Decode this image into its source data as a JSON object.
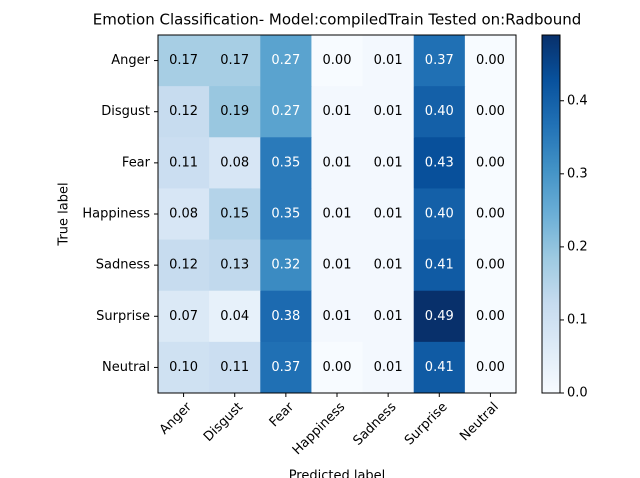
{
  "chart_data": {
    "type": "heatmap",
    "title": "Emotion Classification- Model:compiledTrain Tested on:Radbound",
    "xlabel": "Predicted label",
    "ylabel": "True label",
    "x_categories": [
      "Anger",
      "Disgust",
      "Fear",
      "Happiness",
      "Sadness",
      "Surprise",
      "Neutral"
    ],
    "y_categories": [
      "Anger",
      "Disgust",
      "Fear",
      "Happiness",
      "Sadness",
      "Surprise",
      "Neutral"
    ],
    "values": [
      [
        0.17,
        0.17,
        0.27,
        0,
        0.01,
        0.37,
        0
      ],
      [
        0.12,
        0.19,
        0.27,
        0.01,
        0.01,
        0.4,
        0
      ],
      [
        0.11,
        0.08,
        0.35,
        0.01,
        0.01,
        0.43,
        0
      ],
      [
        0.08,
        0.15,
        0.35,
        0.01,
        0.01,
        0.4,
        0
      ],
      [
        0.12,
        0.13,
        0.32,
        0.01,
        0.01,
        0.41,
        0
      ],
      [
        0.07,
        0.04,
        0.38,
        0.01,
        0.01,
        0.49,
        0
      ],
      [
        0.1,
        0.11,
        0.37,
        0,
        0.01,
        0.41,
        0
      ]
    ],
    "value_labels": [
      [
        "0.17",
        "0.17",
        "0.27",
        "0.00",
        "0.01",
        "0.37",
        "0.00"
      ],
      [
        "0.12",
        "0.19",
        "0.27",
        "0.01",
        "0.01",
        "0.40",
        "0.00"
      ],
      [
        "0.11",
        "0.08",
        "0.35",
        "0.01",
        "0.01",
        "0.43",
        "0.00"
      ],
      [
        "0.08",
        "0.15",
        "0.35",
        "0.01",
        "0.01",
        "0.40",
        "0.00"
      ],
      [
        "0.12",
        "0.13",
        "0.32",
        "0.01",
        "0.01",
        "0.41",
        "0.00"
      ],
      [
        "0.07",
        "0.04",
        "0.38",
        "0.01",
        "0.01",
        "0.49",
        "0.00"
      ],
      [
        "0.10",
        "0.11",
        "0.37",
        "0.00",
        "0.01",
        "0.41",
        "0.00"
      ]
    ],
    "colormap": "Blues",
    "clim": [
      0,
      0.49
    ],
    "colorbar_ticks": [
      {
        "value": 0,
        "label": "0.0"
      },
      0.1,
      0.2,
      0.3,
      0.4
    ]
  }
}
